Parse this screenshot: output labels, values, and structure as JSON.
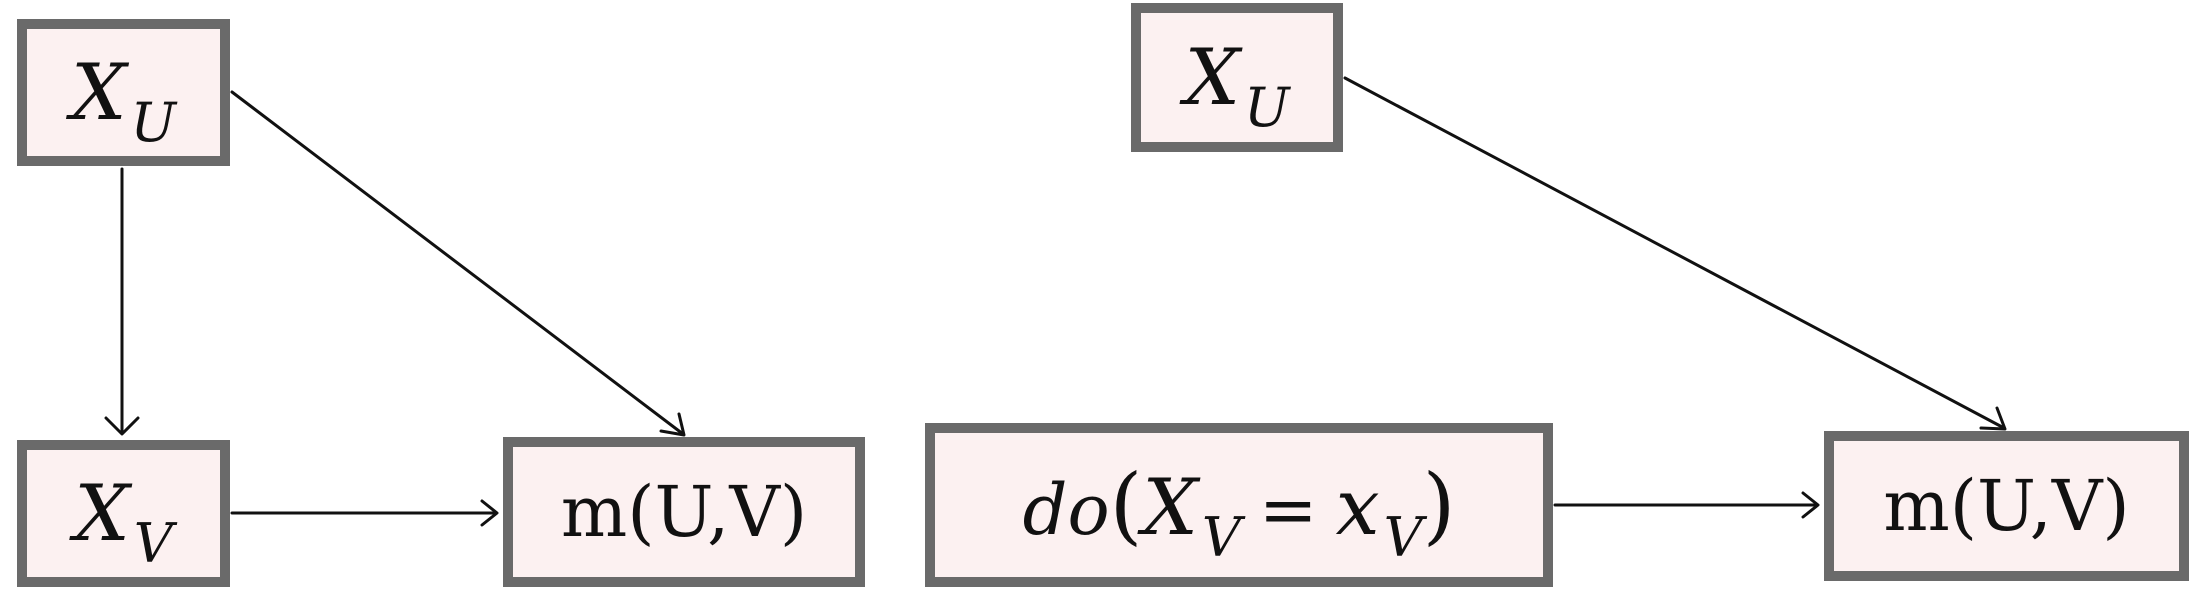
{
  "diagram": {
    "left_graph": {
      "nodes": [
        {
          "id": "xu",
          "var": "X",
          "sub": "U"
        },
        {
          "id": "xv",
          "var": "X",
          "sub": "V"
        },
        {
          "id": "m",
          "label": "m(U,V)"
        }
      ],
      "edges": [
        {
          "from": "xu",
          "to": "xv"
        },
        {
          "from": "xu",
          "to": "m"
        },
        {
          "from": "xv",
          "to": "m"
        }
      ]
    },
    "right_graph": {
      "nodes": [
        {
          "id": "xu",
          "var": "X",
          "sub": "U"
        },
        {
          "id": "do",
          "func": "do",
          "open": "(",
          "lhs_var": "X",
          "lhs_sub": "V",
          "op": "=",
          "rhs_var": "x",
          "rhs_sub": "V",
          "close": ")"
        },
        {
          "id": "m",
          "label": "m(U,V)"
        }
      ],
      "edges": [
        {
          "from": "xu",
          "to": "m"
        },
        {
          "from": "do",
          "to": "m"
        }
      ]
    }
  },
  "colors": {
    "node_fill": "#fcf1f1",
    "node_border": "#6a6a6a",
    "edge": "#111111"
  }
}
